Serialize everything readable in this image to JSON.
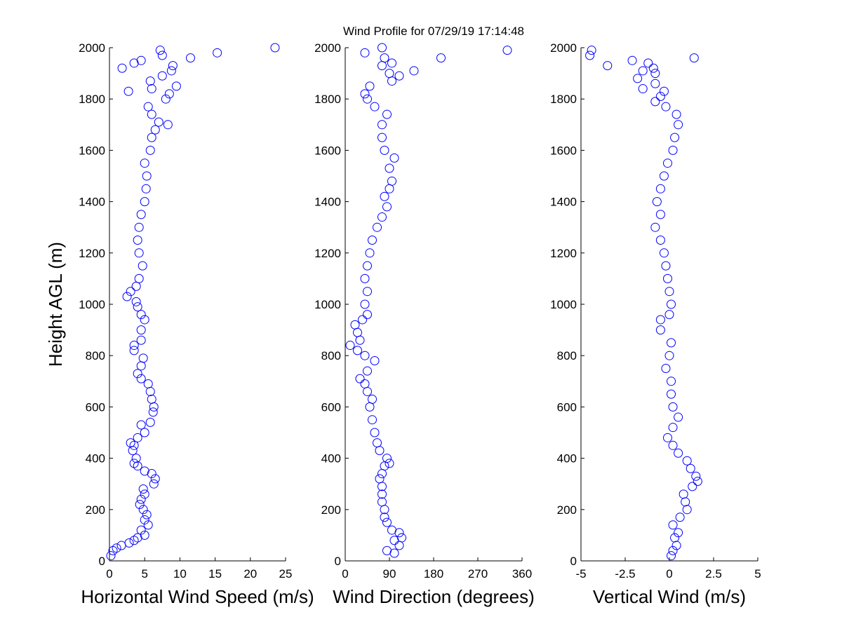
{
  "chart_data": [
    {
      "type": "scatter",
      "title": "Wind Profile for  07/29/19 17:14:48",
      "ylabel": "Height AGL (m)",
      "xlabel": "Horizontal Wind Speed (m/s)",
      "color": "#0000ff",
      "xlim": [
        0,
        25
      ],
      "xticks": [
        0,
        5,
        10,
        15,
        20,
        25
      ],
      "ylim": [
        0,
        2000
      ],
      "yticks": [
        0,
        200,
        400,
        600,
        800,
        1000,
        1200,
        1400,
        1600,
        1800,
        2000
      ],
      "x": [
        0.2,
        0.5,
        1,
        1.7,
        2.8,
        3.5,
        4,
        5,
        4.5,
        5.5,
        5,
        5.3,
        4.8,
        4.3,
        4.5,
        5,
        4.8,
        6.3,
        6.5,
        6,
        5,
        4,
        3.5,
        3.8,
        3.3,
        3.5,
        3,
        4,
        5,
        4.5,
        5.8,
        6.2,
        6.3,
        6,
        5.8,
        5.5,
        4.5,
        4,
        4.5,
        4.8,
        3.5,
        3.5,
        4.5,
        4.5,
        5,
        4.5,
        4,
        3.8,
        2.5,
        3,
        3.8,
        4.2,
        4.7,
        4.2,
        4,
        4.2,
        4.5,
        5,
        5.2,
        5.3,
        5,
        5.8,
        6,
        6.5,
        8.3,
        7,
        6,
        5.5,
        8,
        2.7,
        8.5,
        6,
        9.5,
        5.8,
        7.5,
        8.8,
        1.8,
        9,
        3.5,
        4.5,
        11.5,
        7.5,
        15.3,
        7.2,
        23.5
      ],
      "y": [
        20,
        40,
        50,
        60,
        70,
        80,
        90,
        100,
        120,
        140,
        160,
        180,
        200,
        220,
        240,
        260,
        280,
        300,
        320,
        340,
        350,
        370,
        380,
        400,
        430,
        450,
        460,
        480,
        500,
        530,
        540,
        580,
        600,
        630,
        660,
        690,
        710,
        730,
        760,
        790,
        820,
        840,
        860,
        900,
        940,
        960,
        990,
        1010,
        1030,
        1050,
        1070,
        1100,
        1150,
        1200,
        1250,
        1300,
        1350,
        1400,
        1450,
        1500,
        1550,
        1600,
        1650,
        1680,
        1700,
        1710,
        1740,
        1770,
        1800,
        1830,
        1820,
        1840,
        1850,
        1870,
        1890,
        1910,
        1920,
        1930,
        1940,
        1950,
        1960,
        1970,
        1980,
        1990,
        2000
      ]
    },
    {
      "type": "scatter",
      "xlabel": "Wind Direction (degrees)",
      "color": "#0000ff",
      "xlim": [
        0,
        360
      ],
      "xticks": [
        0,
        90,
        180,
        270,
        360
      ],
      "ylim": [
        0,
        2000
      ],
      "yticks": [
        0,
        200,
        400,
        600,
        800,
        1000,
        1200,
        1400,
        1600,
        1800,
        2000
      ],
      "x": [
        85,
        100,
        110,
        100,
        115,
        110,
        95,
        85,
        80,
        80,
        75,
        75,
        75,
        70,
        75,
        80,
        90,
        85,
        70,
        65,
        60,
        55,
        50,
        55,
        45,
        40,
        30,
        45,
        60,
        40,
        25,
        10,
        30,
        25,
        20,
        35,
        45,
        40,
        45,
        40,
        45,
        50,
        55,
        65,
        75,
        85,
        80,
        90,
        95,
        90,
        100,
        80,
        75,
        75,
        85,
        60,
        45,
        40,
        50,
        95,
        110,
        90,
        140,
        75,
        95,
        80,
        195,
        40,
        330,
        75
      ],
      "y": [
        40,
        30,
        60,
        80,
        90,
        110,
        120,
        150,
        170,
        200,
        230,
        260,
        290,
        320,
        340,
        370,
        380,
        400,
        430,
        460,
        500,
        550,
        600,
        630,
        660,
        690,
        710,
        740,
        780,
        800,
        820,
        840,
        860,
        890,
        920,
        940,
        960,
        1000,
        1050,
        1100,
        1150,
        1200,
        1250,
        1300,
        1340,
        1380,
        1420,
        1450,
        1480,
        1530,
        1570,
        1600,
        1650,
        1700,
        1740,
        1770,
        1800,
        1820,
        1850,
        1870,
        1890,
        1900,
        1910,
        1930,
        1940,
        1960,
        1960,
        1980,
        1990,
        2000
      ]
    },
    {
      "type": "scatter",
      "xlabel": "Vertical Wind (m/s)",
      "color": "#0000ff",
      "xlim": [
        -5,
        5
      ],
      "xticks": [
        -5,
        -2.5,
        0,
        2.5,
        5
      ],
      "ylim": [
        0,
        2000
      ],
      "yticks": [
        0,
        200,
        400,
        600,
        800,
        1000,
        1200,
        1400,
        1600,
        1800,
        2000
      ],
      "x": [
        0.1,
        0.2,
        0.4,
        0.3,
        0.5,
        0.2,
        0.6,
        1,
        0.9,
        0.8,
        1.3,
        1.6,
        1.5,
        1.2,
        1,
        0.5,
        0.2,
        -0.1,
        0.2,
        0.5,
        0.2,
        0.1,
        0.1,
        -0.2,
        0,
        0.1,
        -0.5,
        -0.5,
        0,
        0.1,
        0,
        -0.1,
        -0.2,
        -0.3,
        -0.5,
        -0.8,
        -0.5,
        -0.7,
        -0.5,
        -0.3,
        -0.1,
        0.2,
        0.3,
        0.5,
        0.4,
        -0.2,
        -0.8,
        -0.5,
        -0.3,
        -1.5,
        -0.8,
        -1.8,
        -1.5,
        -0.8,
        -0.9,
        -3.5,
        -1.2,
        -2.1,
        1.4,
        -4.5,
        -4.4
      ],
      "y": [
        20,
        40,
        60,
        90,
        110,
        140,
        170,
        200,
        230,
        260,
        290,
        310,
        330,
        360,
        390,
        420,
        450,
        480,
        520,
        560,
        600,
        650,
        700,
        750,
        800,
        850,
        900,
        940,
        960,
        1000,
        1050,
        1100,
        1150,
        1200,
        1250,
        1300,
        1350,
        1400,
        1450,
        1500,
        1550,
        1600,
        1650,
        1700,
        1740,
        1770,
        1790,
        1810,
        1830,
        1840,
        1860,
        1880,
        1910,
        1900,
        1920,
        1930,
        1940,
        1950,
        1960,
        1970,
        1990
      ]
    }
  ]
}
